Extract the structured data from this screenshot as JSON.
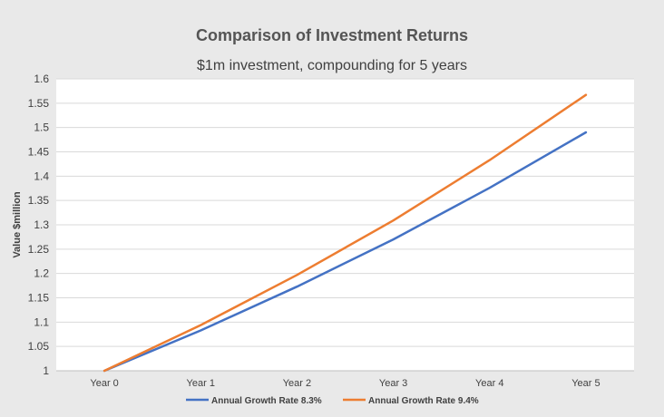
{
  "chart_data": {
    "type": "line",
    "title": "Comparison of Investment Returns",
    "subtitle": "$1m investment, compounding for 5 years",
    "xlabel": "",
    "ylabel": "Value $million",
    "categories": [
      "Year 0",
      "Year 1",
      "Year 2",
      "Year 3",
      "Year 4",
      "Year 5"
    ],
    "ylim": [
      1,
      1.6
    ],
    "yticks": [
      1,
      1.05,
      1.1,
      1.15,
      1.2,
      1.25,
      1.3,
      1.35,
      1.4,
      1.45,
      1.5,
      1.55,
      1.6
    ],
    "grid": true,
    "legend_position": "bottom",
    "series": [
      {
        "name": "Annual Growth Rate 8.3%",
        "color": "#4472c4",
        "values": [
          1,
          1.083,
          1.173,
          1.27,
          1.376,
          1.49
        ]
      },
      {
        "name": "Annual Growth Rate 9.4%",
        "color": "#ed7d31",
        "values": [
          1,
          1.094,
          1.197,
          1.309,
          1.433,
          1.567
        ]
      }
    ]
  }
}
